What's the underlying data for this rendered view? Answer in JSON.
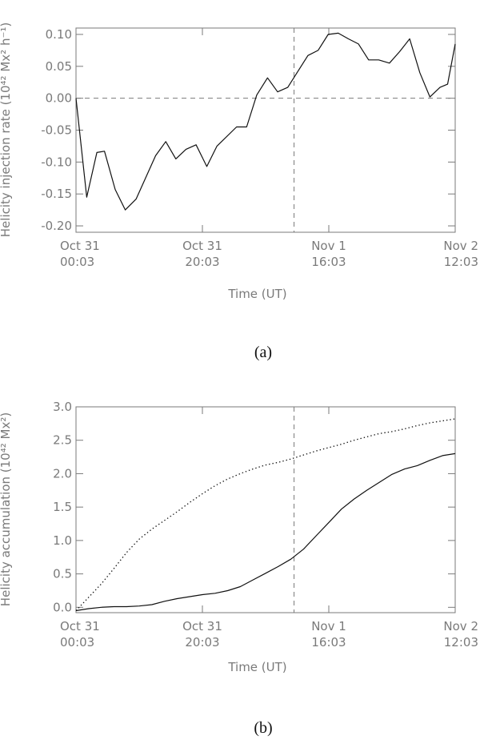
{
  "figure": {
    "panels": [
      {
        "caption": "(a)"
      },
      {
        "caption": "(b)"
      }
    ]
  },
  "colors": {
    "axes": "#7a7a7a",
    "series": "#111111",
    "reference": "#7a7a7a"
  },
  "chart_data": [
    {
      "type": "line",
      "panel": "(a)",
      "xlabel": "Time (UT)",
      "ylabel": "Helicity injection rate (10⁴² Mx² h⁻¹)",
      "x_tick_labels": [
        {
          "line1": "Oct 31",
          "line2": "00:03",
          "x": 0
        },
        {
          "line1": "Oct 31",
          "line2": "20:03",
          "x": 20
        },
        {
          "line1": "Nov 1",
          "line2": "16:03",
          "x": 40
        },
        {
          "line1": "Nov 2",
          "line2": "12:03",
          "x": 60
        }
      ],
      "xlim": [
        0,
        60
      ],
      "ylim": [
        -0.21,
        0.11
      ],
      "y_ticks": [
        {
          "label": "0.10",
          "value": 0.1
        },
        {
          "label": "0.05",
          "value": 0.05
        },
        {
          "label": "0.00",
          "value": 0.0
        },
        {
          "label": "-0.05",
          "value": -0.05
        },
        {
          "label": "-0.10",
          "value": -0.1
        },
        {
          "label": "-0.15",
          "value": -0.15
        },
        {
          "label": "-0.20",
          "value": -0.2
        }
      ],
      "reference_lines": {
        "horizontal_y": 0.0,
        "vertical_x": 34.5
      },
      "series": [
        {
          "style": "solid",
          "x": [
            0,
            1.7,
            3.3,
            4.5,
            6.2,
            7.8,
            9.5,
            12.6,
            14.2,
            15.8,
            17.4,
            19.0,
            20.7,
            22.3,
            25.4,
            27.0,
            28.6,
            30.3,
            31.9,
            33.5,
            35.1,
            36.7,
            38.3,
            39.9,
            41.5,
            43.1,
            44.7,
            46.3,
            47.9,
            49.6,
            51.2,
            52.8,
            54.4,
            56.0,
            57.6,
            58.8,
            60.0
          ],
          "values": [
            0.0,
            -0.155,
            -0.085,
            -0.083,
            -0.143,
            -0.175,
            -0.158,
            -0.09,
            -0.068,
            -0.095,
            -0.08,
            -0.073,
            -0.107,
            -0.075,
            -0.045,
            -0.045,
            0.005,
            0.032,
            0.01,
            0.017,
            0.042,
            0.067,
            0.075,
            0.1,
            0.102,
            0.093,
            0.085,
            0.06,
            0.06,
            0.055,
            0.073,
            0.093,
            0.04,
            0.002,
            0.017,
            0.022,
            0.085
          ]
        }
      ]
    },
    {
      "type": "line",
      "panel": "(b)",
      "xlabel": "Time (UT)",
      "ylabel": "Helicity accumulation (10⁴² Mx²)",
      "x_tick_labels": [
        {
          "line1": "Oct 31",
          "line2": "00:03",
          "x": 0
        },
        {
          "line1": "Oct 31",
          "line2": "20:03",
          "x": 20
        },
        {
          "line1": "Nov 1",
          "line2": "16:03",
          "x": 40
        },
        {
          "line1": "Nov 2",
          "line2": "12:03",
          "x": 60
        }
      ],
      "xlim": [
        0,
        60
      ],
      "ylim": [
        -0.08,
        3.0
      ],
      "y_ticks": [
        {
          "label": "3.0",
          "value": 3.0
        },
        {
          "label": "2.5",
          "value": 2.5
        },
        {
          "label": "2.0",
          "value": 2.0
        },
        {
          "label": "1.5",
          "value": 1.5
        },
        {
          "label": "1.0",
          "value": 1.0
        },
        {
          "label": "0.5",
          "value": 0.5
        },
        {
          "label": "0.0",
          "value": 0.0
        }
      ],
      "reference_lines": {
        "vertical_x": 34.5
      },
      "series": [
        {
          "style": "solid",
          "x": [
            0,
            2,
            4,
            6,
            8,
            10,
            12,
            14,
            16,
            18,
            20,
            22,
            24,
            26,
            28,
            30,
            32,
            34,
            36,
            38,
            40,
            42,
            44,
            46,
            48,
            50,
            52,
            54,
            56,
            58,
            60
          ],
          "values": [
            -0.05,
            -0.02,
            0.0,
            0.01,
            0.01,
            0.02,
            0.04,
            0.09,
            0.13,
            0.16,
            0.19,
            0.21,
            0.25,
            0.31,
            0.41,
            0.51,
            0.61,
            0.72,
            0.87,
            1.07,
            1.27,
            1.47,
            1.62,
            1.75,
            1.87,
            1.99,
            2.07,
            2.12,
            2.2,
            2.27,
            2.3
          ]
        },
        {
          "style": "dotted",
          "x": [
            0,
            2,
            4,
            6,
            8,
            10,
            12,
            14,
            16,
            18,
            20,
            22,
            24,
            26,
            28,
            30,
            32,
            34,
            36,
            38,
            40,
            42,
            44,
            46,
            48,
            50,
            52,
            54,
            56,
            58,
            60
          ],
          "values": [
            -0.05,
            0.15,
            0.35,
            0.58,
            0.82,
            1.02,
            1.17,
            1.3,
            1.43,
            1.57,
            1.7,
            1.82,
            1.92,
            2.0,
            2.07,
            2.13,
            2.17,
            2.22,
            2.28,
            2.34,
            2.39,
            2.44,
            2.5,
            2.55,
            2.6,
            2.63,
            2.67,
            2.72,
            2.76,
            2.79,
            2.82
          ]
        }
      ]
    }
  ]
}
